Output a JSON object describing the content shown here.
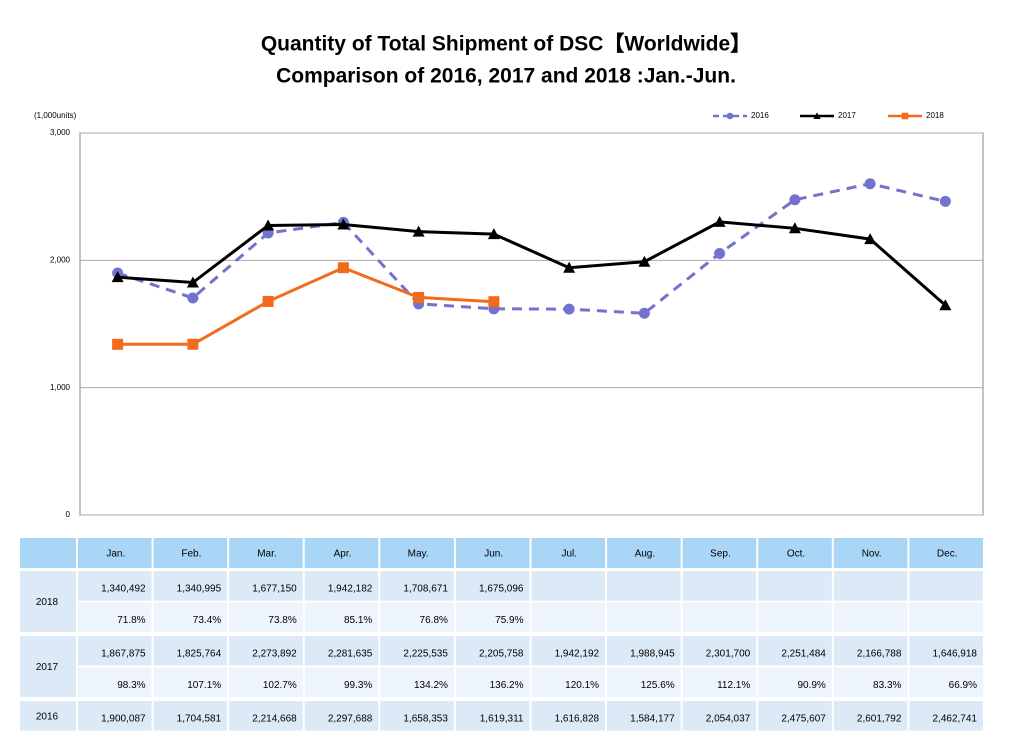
{
  "chart_data": {
    "type": "line",
    "title": "Quantity of Total Shipment of DSC【Worldwide】",
    "subtitle": " Comparison of 2016, 2017 and 2018 :Jan.-Jun.",
    "y_unit_label": "(1,000units)",
    "categories": [
      "Jan.",
      "Feb.",
      "Mar.",
      "Apr.",
      "May.",
      "Jun.",
      "Jul.",
      "Aug.",
      "Sep.",
      "Oct.",
      "Nov.",
      "Dec."
    ],
    "ylim": [
      0,
      3000
    ],
    "yticks": [
      0,
      {
        "value": 1000,
        "label": "1,000"
      },
      {
        "value": 2000,
        "label": "2,000"
      },
      {
        "value": 3000,
        "label": "3,000"
      }
    ],
    "grid": true,
    "legend": "top-right",
    "series": [
      {
        "name": "2016",
        "color": "#7272cf",
        "dashed": true,
        "marker": "circle",
        "values": [
          1900.087,
          1704.581,
          2214.668,
          2297.688,
          1658.353,
          1619.311,
          1616.828,
          1584.177,
          2054.037,
          2475.607,
          2601.792,
          2462.741
        ],
        "value_labels": [
          "1,900,087",
          "1,704,581",
          "2,214,668",
          "2,297,688",
          "1,658,353",
          "1,619,311",
          "1,616,828",
          "1,584,177",
          "2,054,037",
          "2,475,607",
          "2,601,792",
          "2,462,741"
        ]
      },
      {
        "name": "2017",
        "color": "#000000",
        "dashed": false,
        "marker": "triangle",
        "values": [
          1867.875,
          1825.764,
          2273.892,
          2281.635,
          2225.535,
          2205.758,
          1942.192,
          1988.945,
          2301.7,
          2251.484,
          2166.788,
          1646.918
        ],
        "value_labels": [
          "1,867,875",
          "1,825,764",
          "2,273,892",
          "2,281,635",
          "2,225,535",
          "2,205,758",
          "1,942,192",
          "1,988,945",
          "2,301,700",
          "2,251,484",
          "2,166,788",
          "1,646,918"
        ],
        "ratios": [
          "98.3%",
          "107.1%",
          "102.7%",
          "99.3%",
          "134.2%",
          "136.2%",
          "120.1%",
          "125.6%",
          "112.1%",
          "90.9%",
          "83.3%",
          "66.9%"
        ]
      },
      {
        "name": "2018",
        "color": "#f26b1d",
        "dashed": false,
        "marker": "square",
        "values": [
          1340.492,
          1340.995,
          1677.15,
          1942.182,
          1708.671,
          1675.096,
          null,
          null,
          null,
          null,
          null,
          null
        ],
        "value_labels": [
          "1,340,492",
          "1,340,995",
          "1,677,150",
          "1,942,182",
          "1,708,671",
          "1,675,096",
          null,
          null,
          null,
          null,
          null,
          null
        ],
        "ratios": [
          "71.8%",
          "73.4%",
          "73.8%",
          "85.1%",
          "76.8%",
          "75.9%",
          null,
          null,
          null,
          null,
          null,
          null
        ]
      }
    ]
  }
}
